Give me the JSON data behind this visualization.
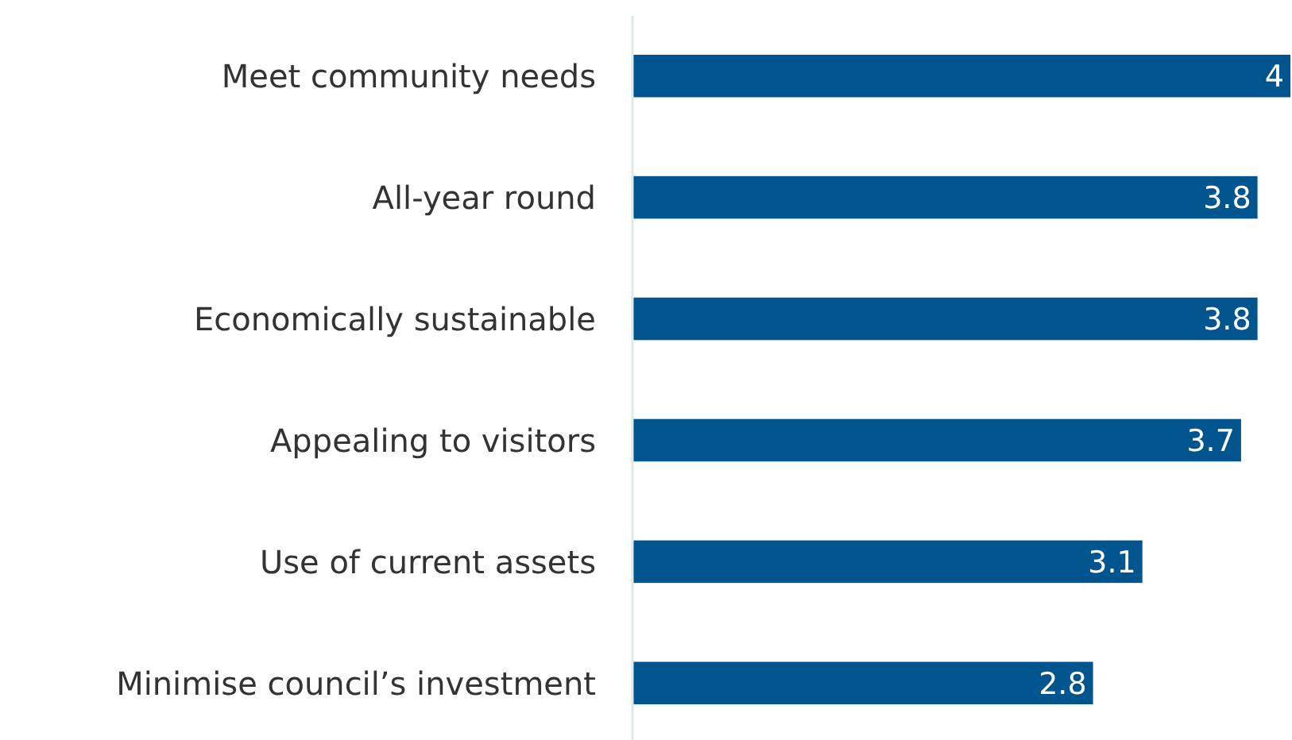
{
  "chart_data": {
    "type": "bar",
    "orientation": "horizontal",
    "categories": [
      "Meet community needs",
      "All-year round",
      "Economically sustainable",
      "Appealing to visitors",
      "Use of current assets",
      "Minimise council’s investment"
    ],
    "values": [
      4,
      3.8,
      3.8,
      3.7,
      3.1,
      2.8
    ],
    "color": "#00558f",
    "data_labels": true
  }
}
